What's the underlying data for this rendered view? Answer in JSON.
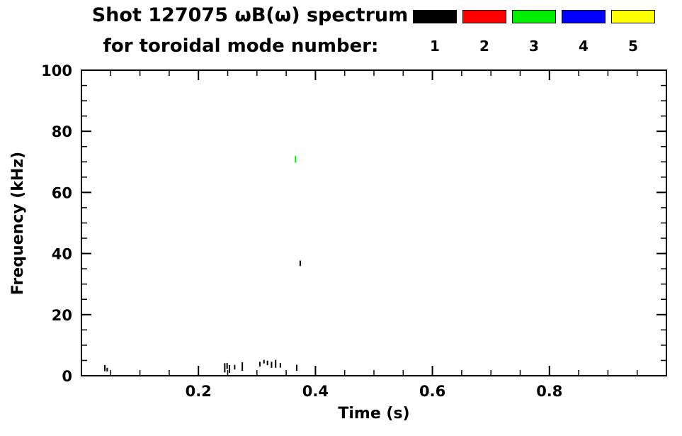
{
  "header": {
    "title": "Shot 127075 ωB(ω) spectrum",
    "subtitle": "for toroidal mode number:"
  },
  "legend": {
    "entries": [
      {
        "label": "1",
        "color": "#000000"
      },
      {
        "label": "2",
        "color": "#ff0000"
      },
      {
        "label": "3",
        "color": "#00ee00"
      },
      {
        "label": "4",
        "color": "#0000ff"
      },
      {
        "label": "5",
        "color": "#ffff00"
      }
    ]
  },
  "chart_data": {
    "type": "scatter",
    "title": "Shot 127075 ωB(ω) spectrum for toroidal mode number:",
    "xlabel": "Time (s)",
    "ylabel": "Frequency (kHz)",
    "xlim": [
      0.0,
      1.0
    ],
    "ylim": [
      0,
      100
    ],
    "xticks": [
      0.2,
      0.4,
      0.6,
      0.8
    ],
    "yticks": [
      0,
      20,
      40,
      60,
      80,
      100
    ],
    "x_minor_step": 0.05,
    "y_minor_step": 5,
    "grid": false,
    "legend_position": "top-right",
    "series": [
      {
        "name": "1",
        "color": "#000000",
        "points": [
          {
            "t": 0.04,
            "f": 2.5,
            "h": 2.0
          },
          {
            "t": 0.044,
            "f": 2.0,
            "h": 1.2
          },
          {
            "t": 0.245,
            "f": 2.6,
            "h": 3.0
          },
          {
            "t": 0.249,
            "f": 3.2,
            "h": 2.0
          },
          {
            "t": 0.253,
            "f": 2.2,
            "h": 2.5
          },
          {
            "t": 0.262,
            "f": 2.8,
            "h": 1.5
          },
          {
            "t": 0.275,
            "f": 3.0,
            "h": 2.8
          },
          {
            "t": 0.305,
            "f": 3.8,
            "h": 1.5
          },
          {
            "t": 0.312,
            "f": 4.6,
            "h": 1.2
          },
          {
            "t": 0.318,
            "f": 4.2,
            "h": 1.5
          },
          {
            "t": 0.325,
            "f": 3.6,
            "h": 2.0
          },
          {
            "t": 0.332,
            "f": 3.9,
            "h": 2.6
          },
          {
            "t": 0.34,
            "f": 3.4,
            "h": 1.5
          },
          {
            "t": 0.368,
            "f": 2.6,
            "h": 2.0
          },
          {
            "t": 0.374,
            "f": 36.8,
            "h": 1.8
          }
        ]
      },
      {
        "name": "2",
        "color": "#ff0000",
        "points": []
      },
      {
        "name": "3",
        "color": "#00ee00",
        "points": [
          {
            "t": 0.366,
            "f": 70.8,
            "h": 2.2
          }
        ]
      },
      {
        "name": "4",
        "color": "#0000ff",
        "points": []
      },
      {
        "name": "5",
        "color": "#ffff00",
        "points": []
      }
    ]
  }
}
